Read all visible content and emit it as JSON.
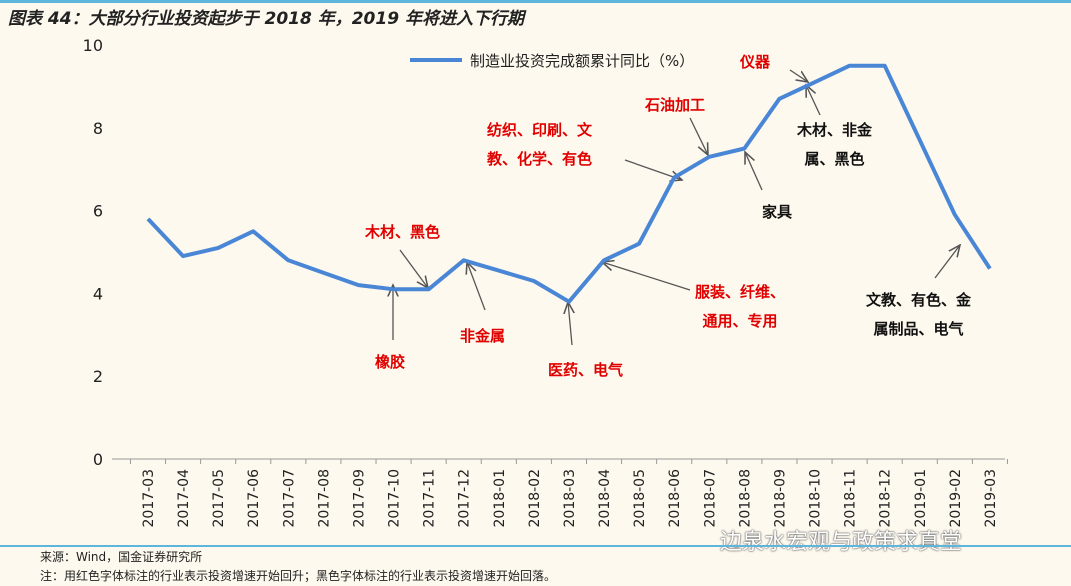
{
  "title": "图表 44：大部分行业投资起步于 2018 年，2019 年将进入下行期",
  "footer": {
    "source": "来源：Wind，国金证券研究所",
    "note": "注：用红色字体标注的行业表示投资增速开始回升；黑色字体标注的行业表示投资增速开始回落。"
  },
  "watermark": "边泉水宏观与政策求真堂",
  "colors": {
    "line": "#4a86d6",
    "red": "#e00000",
    "black": "#111111",
    "background": "#fdf9ee"
  },
  "annotations": {
    "a1": "仪器",
    "a2": "石油加工",
    "a3_1": "纺织、印刷、文",
    "a3_2": "教、化学、有色",
    "a4": "木材、黑色",
    "a5": "橡胶",
    "a6": "非金属",
    "a7": "医药、电气",
    "a8_1": "服装、纤维、",
    "a8_2": "通用、专用",
    "b1": "家具",
    "b2_1": "木材、非金",
    "b2_2": "属、黑色",
    "b3_1": "文教、有色、金",
    "b3_2": "属制品、电气"
  },
  "chart_data": {
    "type": "line",
    "title": "",
    "legend": "top-center",
    "series": [
      {
        "name": "制造业投资完成额累计同比（%）",
        "values": [
          5.8,
          4.9,
          5.1,
          5.5,
          4.8,
          4.5,
          4.2,
          4.1,
          4.1,
          4.8,
          4.55,
          4.3,
          3.8,
          4.8,
          5.2,
          6.8,
          7.3,
          7.5,
          8.7,
          9.1,
          9.5,
          9.5,
          7.7,
          5.9,
          4.6
        ]
      }
    ],
    "categories": [
      "2017-03",
      "2017-04",
      "2017-05",
      "2017-06",
      "2017-07",
      "2017-08",
      "2017-09",
      "2017-10",
      "2017-11",
      "2017-12",
      "2018-01",
      "2018-02",
      "2018-03",
      "2018-04",
      "2018-05",
      "2018-06",
      "2018-07",
      "2018-08",
      "2018-09",
      "2018-10",
      "2018-11",
      "2018-12",
      "2019-01",
      "2019-02",
      "2019-03"
    ],
    "ylim": [
      0,
      10
    ],
    "yticks": [
      "0",
      "2",
      "4",
      "6",
      "8",
      "10"
    ],
    "grid": false
  }
}
